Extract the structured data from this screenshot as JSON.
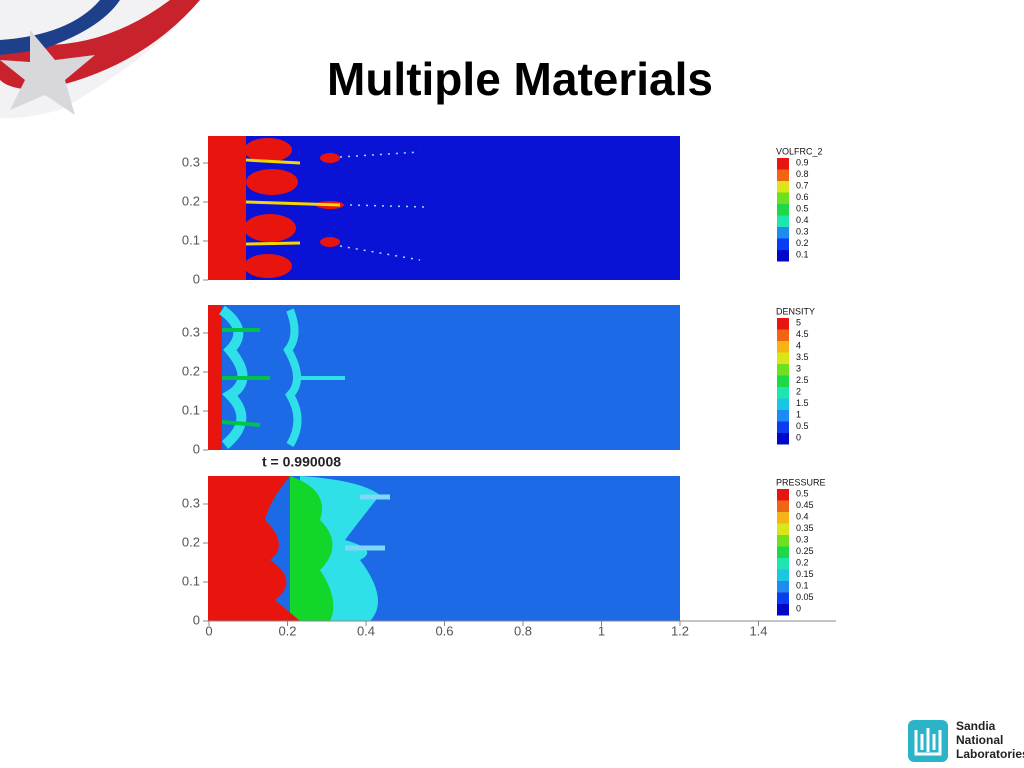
{
  "title": "Multiple Materials",
  "time_label": "t = 0.990008",
  "xticks": [
    0,
    0.2,
    0.4,
    0.6,
    0.8,
    1,
    1.2,
    1.4
  ],
  "panels": [
    {
      "legend_title": "VOLFRC_2",
      "legend_levels": [
        0.9,
        0.8,
        0.7,
        0.6,
        0.5,
        0.4,
        0.3,
        0.2,
        0.1
      ],
      "yticks": [
        0,
        0.1,
        0.2,
        0.3
      ]
    },
    {
      "legend_title": "DENSITY",
      "legend_levels": [
        5,
        4.5,
        4,
        3.5,
        3,
        2.5,
        2,
        1.5,
        1,
        0.5,
        0
      ],
      "yticks": [
        0,
        0.1,
        0.2,
        0.3
      ]
    },
    {
      "legend_title": "PRESSURE",
      "legend_levels": [
        0.5,
        0.45,
        0.4,
        0.35,
        0.3,
        0.25,
        0.2,
        0.15,
        0.1,
        0.05,
        0
      ],
      "yticks": [
        0,
        0.1,
        0.2,
        0.3
      ]
    }
  ],
  "logo": {
    "lines": [
      "Sandia",
      "National",
      "Laboratories"
    ]
  }
}
